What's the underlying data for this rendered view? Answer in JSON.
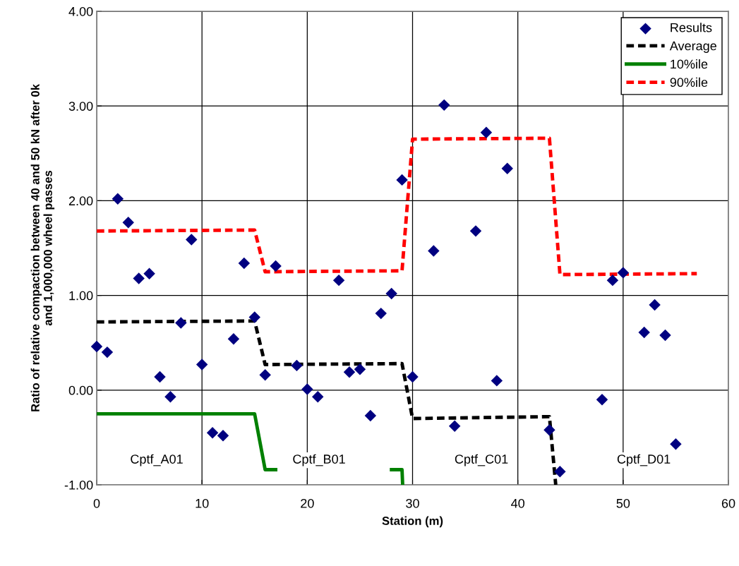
{
  "chart_data": {
    "type": "scatter",
    "xlabel": "Station (m)",
    "ylabel": "Ratio of relative compaction between 40 and 50 kN after 0k\nand 1,000,000 wheel passes",
    "xlim": [
      0,
      60
    ],
    "xticks": [
      0,
      10,
      20,
      30,
      40,
      50,
      60
    ],
    "ylim": [
      -1,
      4
    ],
    "yticks": [
      {
        "value": -1,
        "label": "-1.00"
      },
      {
        "value": 0,
        "label": "0.00"
      },
      {
        "value": 1,
        "label": "1.00"
      },
      {
        "value": 2,
        "label": "2.00"
      },
      {
        "value": 3,
        "label": "3.00"
      },
      {
        "value": 4,
        "label": "4.00"
      }
    ],
    "grid": true,
    "legend": "top right",
    "series": [
      {
        "name": "Results",
        "color": "#000080",
        "marker": "diamond",
        "x": [
          0,
          1,
          2,
          3,
          4,
          5,
          6,
          7,
          8,
          9,
          10,
          11,
          12,
          13,
          14,
          15,
          16,
          17,
          19,
          20,
          21,
          23,
          24,
          25,
          26,
          27,
          28,
          29,
          30,
          32,
          33,
          34,
          36,
          37,
          38,
          39,
          43,
          44,
          48,
          49,
          50,
          52,
          53,
          54,
          55
        ],
        "values": [
          0.46,
          0.4,
          2.02,
          1.77,
          1.18,
          1.23,
          0.14,
          -0.07,
          0.71,
          1.59,
          0.27,
          -0.45,
          -0.48,
          0.54,
          1.34,
          0.77,
          0.16,
          1.31,
          0.26,
          0.01,
          -0.07,
          1.16,
          0.19,
          0.22,
          -0.27,
          0.81,
          1.02,
          2.22,
          0.14,
          1.47,
          3.01,
          -0.38,
          1.68,
          2.72,
          0.1,
          2.34,
          -0.42,
          -0.86,
          -0.1,
          1.16,
          1.24,
          0.61,
          0.9,
          0.58,
          -0.57
        ]
      },
      {
        "name": "Average",
        "type": "line",
        "color": "#000000",
        "line_style": "dashed",
        "x": [
          0,
          15,
          16,
          29,
          30,
          43,
          43.6
        ],
        "values": [
          0.72,
          0.73,
          0.27,
          0.28,
          -0.3,
          -0.28,
          -1.0
        ]
      },
      {
        "name": "10%ile",
        "type": "line",
        "color": "#008000",
        "line_style": "solid",
        "x": [
          0,
          15,
          16,
          17,
          22,
          28,
          29,
          29.06
        ],
        "values": [
          -0.25,
          -0.25,
          -0.84,
          -0.84,
          null,
          -0.84,
          -0.84,
          -1.0
        ]
      },
      {
        "name": "90%ile",
        "type": "line",
        "color": "#ff0000",
        "line_style": "dashed",
        "x": [
          0,
          15,
          16,
          29,
          30,
          43,
          44,
          57
        ],
        "values": [
          1.68,
          1.69,
          1.25,
          1.26,
          2.65,
          2.66,
          1.22,
          1.23
        ]
      }
    ],
    "annotations": [
      "Cptf_A01",
      "Cptf_B01",
      "Cptf_C01",
      "Cptf_D01"
    ]
  }
}
